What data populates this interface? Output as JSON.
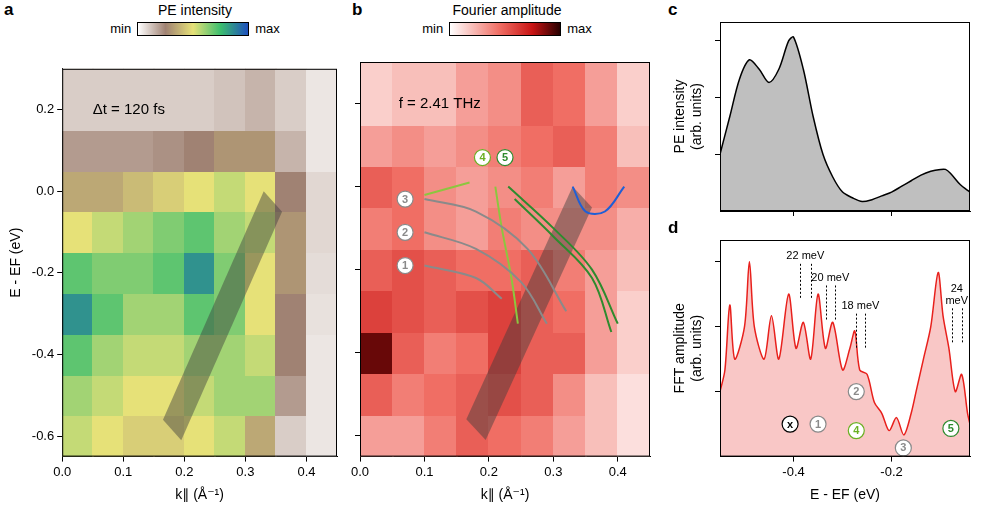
{
  "chart_data": [
    {
      "panel": "a",
      "type": "heatmap",
      "colorbar_title": "PE intensity",
      "colorbar_range": [
        0,
        1
      ],
      "colorbar_ticks": [
        {
          "value": 0,
          "label": "min"
        },
        {
          "value": 1,
          "label": "max"
        }
      ],
      "annotations": [
        {
          "text": "Δt = 120 fs",
          "x": 0.05,
          "y": 0.2
        }
      ],
      "x_label": "k∥ (Å⁻¹)",
      "y_label": "E - EF (eV)",
      "x_edges": [
        0,
        0.05,
        0.1,
        0.15,
        0.2,
        0.25,
        0.3,
        0.35,
        0.4,
        0.45
      ],
      "y_edges": [
        -0.65,
        -0.55,
        -0.45,
        -0.35,
        -0.25,
        -0.15,
        -0.05,
        0.05,
        0.15,
        0.3
      ],
      "z": [
        [
          0.55,
          0.5,
          0.45,
          0.45,
          0.5,
          0.55,
          0.35,
          0.1,
          0.05
        ],
        [
          0.6,
          0.55,
          0.5,
          0.5,
          0.55,
          0.6,
          0.6,
          0.2,
          0.05
        ],
        [
          0.7,
          0.6,
          0.55,
          0.55,
          0.6,
          0.6,
          0.55,
          0.25,
          0.05
        ],
        [
          0.85,
          0.7,
          0.6,
          0.6,
          0.7,
          0.65,
          0.5,
          0.25,
          0.06
        ],
        [
          0.7,
          0.65,
          0.65,
          0.7,
          0.85,
          0.65,
          0.5,
          0.3,
          0.07
        ],
        [
          0.5,
          0.55,
          0.6,
          0.65,
          0.7,
          0.6,
          0.55,
          0.3,
          0.08
        ],
        [
          0.35,
          0.35,
          0.4,
          0.45,
          0.5,
          0.55,
          0.5,
          0.25,
          0.08
        ],
        [
          0.2,
          0.2,
          0.2,
          0.22,
          0.25,
          0.3,
          0.3,
          0.15,
          0.05
        ],
        [
          0.1,
          0.1,
          0.1,
          0.1,
          0.1,
          0.12,
          0.15,
          0.1,
          0.05
        ]
      ],
      "shaded_region": {
        "x": [
          0.165,
          0.195,
          0.36,
          0.33
        ],
        "y": [
          -0.56,
          -0.61,
          -0.05,
          0.0
        ]
      },
      "xlim": [
        0,
        0.45
      ],
      "ylim": [
        -0.65,
        0.3
      ],
      "xticks": [
        {
          "value": 0,
          "label": "0.0"
        },
        0.1,
        0.2,
        0.3,
        0.4
      ],
      "yticks": [
        -0.6,
        -0.4,
        -0.2,
        {
          "value": 0,
          "label": "0.0"
        },
        0.2
      ],
      "grid": false
    },
    {
      "panel": "b",
      "type": "heatmap",
      "colorbar_title": "Fourier amplitude",
      "colorbar_range": [
        0,
        1
      ],
      "colorbar_ticks": [
        {
          "value": 0,
          "label": "min"
        },
        {
          "value": 1,
          "label": "max"
        }
      ],
      "annotations": [
        {
          "text": "f = 2.41 THz",
          "x": 0.06,
          "y": 0.2
        }
      ],
      "x_label": "k∥ (Å⁻¹)",
      "x_edges": [
        0,
        0.05,
        0.1,
        0.15,
        0.2,
        0.25,
        0.3,
        0.35,
        0.4,
        0.45
      ],
      "y_edges": [
        -0.65,
        -0.55,
        -0.45,
        -0.35,
        -0.25,
        -0.15,
        -0.05,
        0.05,
        0.15,
        0.3
      ],
      "z": [
        [
          0.3,
          0.3,
          0.4,
          0.5,
          0.45,
          0.4,
          0.3,
          0.2,
          0.1
        ],
        [
          0.5,
          0.4,
          0.45,
          0.5,
          0.55,
          0.5,
          0.35,
          0.2,
          0.1
        ],
        [
          0.9,
          0.5,
          0.4,
          0.45,
          0.6,
          0.5,
          0.5,
          0.3,
          0.15
        ],
        [
          0.6,
          0.55,
          0.5,
          0.55,
          0.6,
          0.5,
          0.45,
          0.3,
          0.15
        ],
        [
          0.5,
          0.55,
          0.5,
          0.45,
          0.45,
          0.5,
          0.4,
          0.3,
          0.2
        ],
        [
          0.4,
          0.45,
          0.35,
          0.3,
          0.4,
          0.35,
          0.35,
          0.35,
          0.25
        ],
        [
          0.5,
          0.45,
          0.35,
          0.3,
          0.35,
          0.4,
          0.3,
          0.4,
          0.35
        ],
        [
          0.3,
          0.35,
          0.3,
          0.35,
          0.4,
          0.45,
          0.5,
          0.4,
          0.2
        ],
        [
          0.15,
          0.2,
          0.2,
          0.3,
          0.35,
          0.5,
          0.45,
          0.3,
          0.15
        ]
      ],
      "shaded_region": {
        "x": [
          0.165,
          0.195,
          0.36,
          0.33
        ],
        "y": [
          -0.56,
          -0.61,
          -0.05,
          0.0
        ]
      },
      "curves": [
        {
          "color": "#8a8a8a",
          "x": [
            0.1,
            0.18,
            0.22
          ],
          "y": [
            -0.19,
            -0.22,
            -0.27
          ]
        },
        {
          "color": "#8a8a8a",
          "x": [
            0.1,
            0.18,
            0.25,
            0.29
          ],
          "y": [
            -0.11,
            -0.15,
            -0.23,
            -0.33
          ]
        },
        {
          "color": "#8a8a8a",
          "x": [
            0.1,
            0.18,
            0.26,
            0.32
          ],
          "y": [
            -0.03,
            -0.06,
            -0.15,
            -0.3
          ]
        },
        {
          "color": "#8cc63f",
          "x": [
            0.1,
            0.17
          ],
          "y": [
            -0.02,
            0.01
          ]
        },
        {
          "color": "#8cc63f",
          "x": [
            0.21,
            0.22,
            0.235,
            0.245
          ],
          "y": [
            0.0,
            -0.1,
            -0.22,
            -0.33
          ]
        },
        {
          "color": "#2e8b2e",
          "x": [
            0.23,
            0.3,
            0.36,
            0.4
          ],
          "y": [
            0.0,
            -0.1,
            -0.2,
            -0.33
          ]
        },
        {
          "color": "#2e8b2e",
          "x": [
            0.24,
            0.3,
            0.36,
            0.39
          ],
          "y": [
            -0.03,
            -0.12,
            -0.22,
            -0.35
          ]
        },
        {
          "color": "#1f5fd6",
          "x": [
            0.33,
            0.35,
            0.38,
            0.41
          ],
          "y": [
            0.0,
            -0.06,
            -0.06,
            0.0
          ]
        }
      ],
      "markers": [
        {
          "text": "1",
          "x": 0.07,
          "y": -0.19,
          "color": "#8a8a8a"
        },
        {
          "text": "2",
          "x": 0.07,
          "y": -0.11,
          "color": "#8a8a8a"
        },
        {
          "text": "3",
          "x": 0.07,
          "y": -0.03,
          "color": "#8a8a8a"
        },
        {
          "text": "4",
          "x": 0.19,
          "y": 0.07,
          "color": "#6ab023"
        },
        {
          "text": "5",
          "x": 0.225,
          "y": 0.07,
          "color": "#2e8b2e"
        }
      ],
      "xlim": [
        0,
        0.45
      ],
      "ylim": [
        -0.65,
        0.3
      ],
      "xticks": [
        {
          "value": 0,
          "label": "0.0"
        },
        0.1,
        0.2,
        0.3,
        0.4
      ],
      "yticks": [
        -0.6,
        -0.4,
        -0.2,
        {
          "value": 0,
          "label": "0.0"
        },
        0.2
      ],
      "tick_labels": "x",
      "grid": false
    },
    {
      "panel": "c",
      "type": "line",
      "color": "#000000",
      "y_label": "PE intensity (arb. units)",
      "x": [
        -0.55,
        -0.53,
        -0.51,
        -0.49,
        -0.47,
        -0.45,
        -0.43,
        -0.41,
        -0.4,
        -0.38,
        -0.36,
        -0.34,
        -0.32,
        -0.3,
        -0.28,
        -0.26,
        -0.24,
        -0.22,
        -0.2,
        -0.18,
        -0.16,
        -0.14,
        -0.12,
        -0.1,
        -0.09,
        -0.08,
        -0.06,
        -0.04
      ],
      "values": [
        0.3,
        0.5,
        0.7,
        0.8,
        0.75,
        0.68,
        0.75,
        0.9,
        0.92,
        0.75,
        0.5,
        0.3,
        0.18,
        0.1,
        0.07,
        0.05,
        0.06,
        0.08,
        0.1,
        0.13,
        0.16,
        0.19,
        0.21,
        0.22,
        0.22,
        0.2,
        0.14,
        0.1
      ],
      "xlim": [
        -0.55,
        -0.04
      ],
      "ylim": [
        0,
        1
      ],
      "xticks": [
        -0.4,
        -0.2
      ],
      "yticks": [
        0.3,
        0.6,
        0.9
      ],
      "tick_labels": false,
      "grid": false
    },
    {
      "panel": "d",
      "type": "line",
      "color": "#e8201c",
      "x_label": "E - EF (eV)",
      "y_label": "FFT amplitude (arb. units)",
      "x": [
        -0.55,
        -0.54,
        -0.53,
        -0.52,
        -0.5,
        -0.49,
        -0.48,
        -0.46,
        -0.445,
        -0.43,
        -0.41,
        -0.395,
        -0.38,
        -0.365,
        -0.35,
        -0.335,
        -0.32,
        -0.3,
        -0.285,
        -0.275,
        -0.265,
        -0.25,
        -0.235,
        -0.22,
        -0.205,
        -0.19,
        -0.175,
        -0.16,
        -0.15,
        -0.135,
        -0.12,
        -0.105,
        -0.095,
        -0.083,
        -0.07,
        -0.057,
        -0.045,
        -0.04
      ],
      "values": [
        0.3,
        0.4,
        0.7,
        0.45,
        0.6,
        0.9,
        0.6,
        0.45,
        0.65,
        0.45,
        0.75,
        0.5,
        0.62,
        0.45,
        0.75,
        0.5,
        0.62,
        0.4,
        0.5,
        0.58,
        0.4,
        0.38,
        0.25,
        0.2,
        0.12,
        0.18,
        0.1,
        0.2,
        0.3,
        0.45,
        0.6,
        0.85,
        0.65,
        0.5,
        0.3,
        0.38,
        0.2,
        0.15
      ],
      "spacings": [
        {
          "text": "22 meV",
          "x": [
            -0.387,
            -0.365
          ],
          "y": 0.95
        },
        {
          "text": "20 meV",
          "x": [
            -0.334,
            -0.316
          ],
          "y": 0.85
        },
        {
          "text": "18 meV",
          "x": [
            -0.272,
            -0.255
          ],
          "y": 0.72
        },
        {
          "text": "24 meV",
          "x": [
            -0.077,
            -0.057
          ],
          "y": 0.8
        }
      ],
      "markers": [
        {
          "text": "x",
          "x": -0.407,
          "y": 0.15,
          "color": "#000000"
        },
        {
          "text": "1",
          "x": -0.35,
          "y": 0.15,
          "color": "#8a8a8a"
        },
        {
          "text": "2",
          "x": -0.272,
          "y": 0.3,
          "color": "#8a8a8a"
        },
        {
          "text": "4",
          "x": -0.272,
          "y": 0.12,
          "color": "#6ab023"
        },
        {
          "text": "3",
          "x": -0.176,
          "y": 0.04,
          "color": "#8a8a8a"
        },
        {
          "text": "5",
          "x": -0.079,
          "y": 0.13,
          "color": "#2e8b2e"
        }
      ],
      "xlim": [
        -0.55,
        -0.04
      ],
      "ylim": [
        0,
        1
      ],
      "xticks": [
        -0.4,
        -0.2
      ],
      "yticks": [
        0.3,
        0.6,
        0.9
      ],
      "tick_labels": "x",
      "grid": false
    }
  ]
}
